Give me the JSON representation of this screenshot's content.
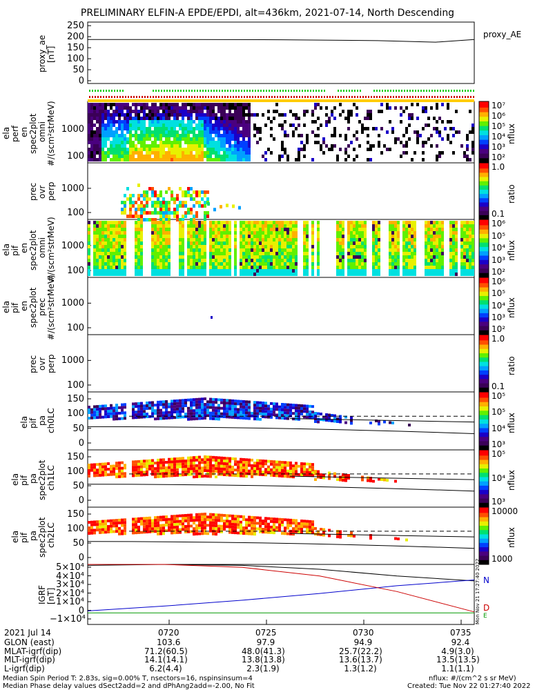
{
  "title": "PRELIMINARY ELFIN-A EPDE/EPDI, alt=436km, 2021-07-14, North Descending",
  "chart_data": [
    {
      "type": "line",
      "name": "proxy_ae",
      "ylabel": [
        "proxy_ae",
        "[nT]"
      ],
      "legend": "proxy_AE",
      "yticks": [
        "250",
        "200",
        "150",
        "100",
        "50",
        "0"
      ],
      "ylim": [
        0,
        260
      ],
      "x": [
        0,
        0.25,
        0.5,
        0.75,
        0.9,
        1.0
      ],
      "values": [
        197,
        197,
        196,
        192,
        185,
        197
      ]
    },
    {
      "type": "heatmap",
      "name": "ela-perf-en-spec2plot-omni",
      "ylabel": [
        "ela",
        "perf",
        "en",
        "spec2plot",
        "omni",
        "#/(scm²strMeV)"
      ],
      "yticks": [
        "1000",
        "100"
      ],
      "colorbar": {
        "label": "nflux",
        "ticks": [
          "10⁷",
          "10⁶",
          "10⁵",
          "10⁴",
          "10³",
          "10²"
        ]
      }
    },
    {
      "type": "heatmap",
      "name": "prec-ovr-perp-electron",
      "ylabel": [
        "prec",
        "ovr",
        "perp"
      ],
      "yticks": [
        "1000",
        "100"
      ],
      "colorbar": {
        "label": "ratio",
        "ticks": [
          "1.0",
          "0.1"
        ]
      }
    },
    {
      "type": "heatmap",
      "name": "ela-pif-en-spec2plot-omni",
      "ylabel": [
        "ela",
        "pif",
        "en",
        "spec2plot",
        "omni",
        "#/(scm²strMeV)"
      ],
      "yticks": [
        "1000",
        "100"
      ],
      "colorbar": {
        "label": "nflux",
        "ticks": [
          "10⁶",
          "10⁵",
          "10⁴",
          "10³",
          "10²"
        ]
      }
    },
    {
      "type": "heatmap",
      "name": "ela-pif-en-spec2plot-prec",
      "ylabel": [
        "ela",
        "pif",
        "en",
        "spec2plot",
        "prec",
        "#/(scm²strMeV)"
      ],
      "yticks": [
        "1000",
        "100"
      ],
      "colorbar": {
        "label": "nflux",
        "ticks": [
          "10⁶",
          "10⁵",
          "10⁴",
          "10³",
          "10²"
        ]
      }
    },
    {
      "type": "heatmap",
      "name": "prec-ovr-perp-ion",
      "ylabel": [
        "prec",
        "ovr",
        "perp"
      ],
      "yticks": [
        "1000",
        "100"
      ],
      "colorbar": {
        "label": "ratio",
        "ticks": [
          "1.0",
          "0.1"
        ]
      }
    },
    {
      "type": "heatmap",
      "name": "ela-pif-pa-ch0LC",
      "ylabel": [
        "ela",
        "pif",
        "pa",
        "ch0LC"
      ],
      "yticks": [
        "150",
        "100",
        "50",
        "0"
      ],
      "colorbar": {
        "label": "nflux",
        "ticks": [
          "10⁵",
          "10⁵",
          "10⁴",
          "10³"
        ]
      }
    },
    {
      "type": "heatmap",
      "name": "ela-pif-pa-spec2plot-ch1LC",
      "ylabel": [
        "ela",
        "pif",
        "pa",
        "spec2plot",
        "ch1LC"
      ],
      "yticks": [
        "150",
        "100",
        "50",
        "0"
      ],
      "colorbar": {
        "label": "nflux",
        "ticks": [
          "10⁵",
          "10⁴",
          "10³"
        ]
      }
    },
    {
      "type": "heatmap",
      "name": "ela-pif-pa-spec2plot-ch2LC",
      "ylabel": [
        "ela",
        "pif",
        "pa",
        "spec2plot",
        "ch2LC"
      ],
      "yticks": [
        "150",
        "100",
        "50",
        "0"
      ],
      "colorbar": {
        "label": "nflux",
        "ticks": [
          "10000",
          "1000"
        ]
      }
    },
    {
      "type": "line",
      "name": "igrf",
      "ylabel": [
        "IGRF",
        "[nT]"
      ],
      "yticks": [
        "5×10⁴",
        "4×10⁴",
        "3×10⁴",
        "2×10⁴",
        "1×10⁴",
        "0",
        "−1×10⁴"
      ],
      "ylim": [
        -10000,
        50000
      ],
      "series": [
        {
          "name": "N",
          "color": "#000000",
          "x": [
            0,
            0.2,
            0.4,
            0.6,
            0.8,
            1.0
          ],
          "values": [
            49000,
            50000,
            49000,
            45000,
            38000,
            33000
          ]
        },
        {
          "name": "E",
          "color": "#0000cc",
          "x": [
            0,
            0.2,
            0.4,
            0.6,
            0.8,
            1.0
          ],
          "values": [
            2000,
            7000,
            13000,
            20000,
            28000,
            34000
          ]
        },
        {
          "name": "D",
          "color": "#cc0000",
          "x": [
            0,
            0.2,
            0.4,
            0.6,
            0.8,
            1.0
          ],
          "values": [
            50000,
            50000,
            47000,
            38000,
            22000,
            1000
          ]
        },
        {
          "name": "E2",
          "color": "#009900",
          "x": [
            0,
            1.0
          ],
          "values": [
            0,
            0
          ]
        }
      ],
      "legend": [
        "N",
        "E",
        "D"
      ]
    }
  ],
  "time_axis": {
    "date": "2021 Jul 14",
    "ticks": [
      "0720",
      "0725",
      "0730",
      "0735"
    ],
    "rows": [
      {
        "label": "GLON (east)",
        "values": [
          "103.6",
          "97.9",
          "94.9",
          "92.4"
        ]
      },
      {
        "label": "MLAT-igrf(dip)",
        "values": [
          "71.2(60.5)",
          "48.0(41.3)",
          "25.7(22.2)",
          "4.9(3.0)"
        ]
      },
      {
        "label": "MLT-igrf(dip)",
        "values": [
          "14.1(14.1)",
          "13.8(13.8)",
          "13.6(13.7)",
          "13.5(13.5)"
        ]
      },
      {
        "label": "L-igrf(dip)",
        "values": [
          "6.2(4.4)",
          "2.3(1.9)",
          "1.3(1.2)",
          "1.1(1.1)"
        ]
      }
    ]
  },
  "footer": {
    "line1": "Median Spin Period T: 2.83s, sig=0.00% T, nsectors=16, nspinsinsum=4",
    "line2": "Median Phase delay values dSect2add=2 and dPhAng2add=-2.00, No Fit",
    "right1": "nflux: #/(cm^2 s sr MeV)",
    "right2": "Created: Tue Nov 22 01:27:40 2022",
    "stamp": "Mon Nov 21 17:27:40 2022"
  }
}
